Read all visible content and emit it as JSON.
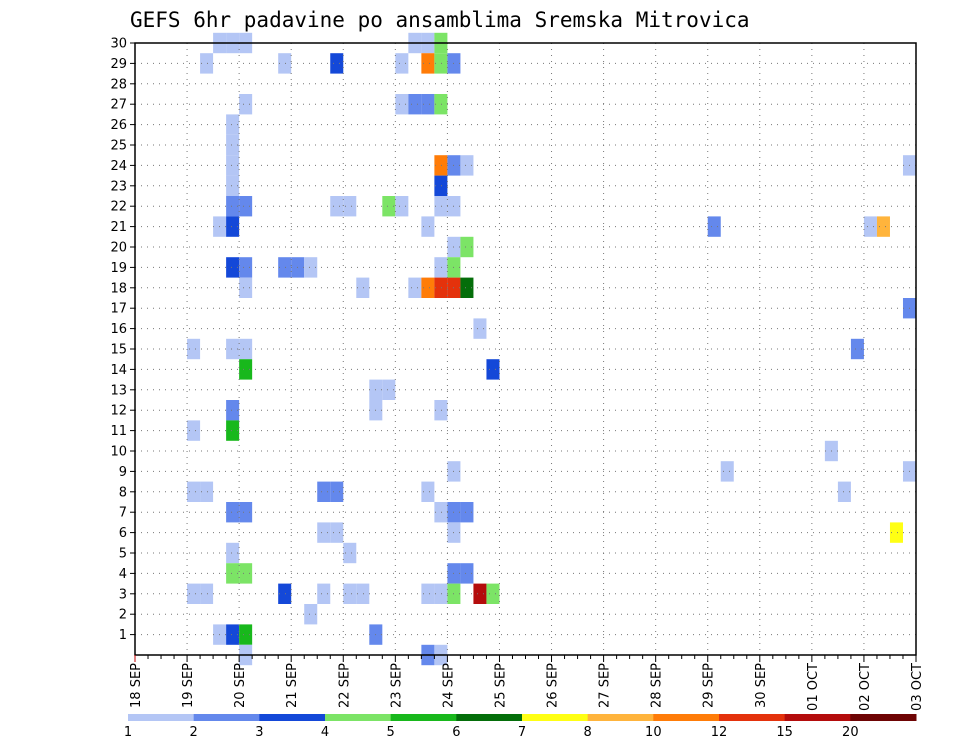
{
  "chart_data": {
    "type": "heatmap",
    "title": "GEFS 6hr padavine po ansamblima Sremska Mitrovica",
    "x_ticks": [
      "18 SEP",
      "19 SEP",
      "20 SEP",
      "21 SEP",
      "22 SEP",
      "23 SEP",
      "24 SEP",
      "25 SEP",
      "26 SEP",
      "27 SEP",
      "28 SEP",
      "29 SEP",
      "30 SEP",
      "01 OCT",
      "02 OCT",
      "03 OCT"
    ],
    "y_ticks": [
      1,
      2,
      3,
      4,
      5,
      6,
      7,
      8,
      9,
      10,
      11,
      12,
      13,
      14,
      15,
      16,
      17,
      18,
      19,
      20,
      21,
      22,
      23,
      24,
      25,
      26,
      27,
      28,
      29,
      30
    ],
    "y_range": [
      0,
      30
    ],
    "x_start": "18 SEP 00Z",
    "x_step_hours": 6,
    "grid": true,
    "legend": {
      "labels": [
        "1",
        "2",
        "3",
        "4",
        "5",
        "6",
        "7",
        "8",
        "10",
        "12",
        "15",
        "20"
      ],
      "colors": [
        "#b4c6f5",
        "#6488ec",
        "#1448d8",
        "#7ce466",
        "#18b81c",
        "#046e0a",
        "#ffff14",
        "#ffb43c",
        "#ff7c08",
        "#e4320c",
        "#b40c0c",
        "#6e0404"
      ]
    },
    "cells_note": "each cell: [member, time_index, color_bin]; time_index counts 6-hourly steps from 18 SEP 00Z",
    "cells": [
      [
        30,
        6,
        1
      ],
      [
        30,
        7,
        1
      ],
      [
        30,
        8,
        1
      ],
      [
        30,
        21,
        1
      ],
      [
        30,
        22,
        1
      ],
      [
        30,
        23,
        4
      ],
      [
        29,
        5,
        1
      ],
      [
        29,
        11,
        1
      ],
      [
        29,
        15,
        3
      ],
      [
        29,
        20,
        1
      ],
      [
        29,
        22,
        9
      ],
      [
        29,
        23,
        4
      ],
      [
        29,
        24,
        2
      ],
      [
        27,
        8,
        1
      ],
      [
        27,
        20,
        1
      ],
      [
        27,
        21,
        2
      ],
      [
        27,
        22,
        2
      ],
      [
        27,
        23,
        4
      ],
      [
        26,
        7,
        1
      ],
      [
        25,
        7,
        1
      ],
      [
        24,
        7,
        1
      ],
      [
        24,
        23,
        9
      ],
      [
        24,
        24,
        2
      ],
      [
        24,
        25,
        1
      ],
      [
        24,
        59,
        1
      ],
      [
        23,
        7,
        1
      ],
      [
        23,
        23,
        3
      ],
      [
        22,
        7,
        2
      ],
      [
        22,
        8,
        2
      ],
      [
        22,
        15,
        1
      ],
      [
        22,
        16,
        1
      ],
      [
        22,
        19,
        4
      ],
      [
        22,
        20,
        1
      ],
      [
        22,
        23,
        1
      ],
      [
        22,
        24,
        1
      ],
      [
        21,
        6,
        1
      ],
      [
        21,
        7,
        3
      ],
      [
        21,
        22,
        1
      ],
      [
        21,
        44,
        2
      ],
      [
        21,
        56,
        1
      ],
      [
        21,
        57,
        8
      ],
      [
        20,
        24,
        1
      ],
      [
        20,
        25,
        4
      ],
      [
        19,
        7,
        3
      ],
      [
        19,
        8,
        2
      ],
      [
        19,
        11,
        2
      ],
      [
        19,
        12,
        2
      ],
      [
        19,
        13,
        1
      ],
      [
        19,
        23,
        1
      ],
      [
        19,
        24,
        4
      ],
      [
        18,
        8,
        1
      ],
      [
        18,
        17,
        1
      ],
      [
        18,
        21,
        1
      ],
      [
        18,
        22,
        9
      ],
      [
        18,
        23,
        10
      ],
      [
        18,
        24,
        10
      ],
      [
        18,
        25,
        6
      ],
      [
        17,
        59,
        2
      ],
      [
        16,
        26,
        1
      ],
      [
        15,
        4,
        1
      ],
      [
        15,
        7,
        1
      ],
      [
        15,
        8,
        1
      ],
      [
        15,
        55,
        2
      ],
      [
        14,
        27,
        3
      ],
      [
        14,
        8,
        5
      ],
      [
        13,
        18,
        1
      ],
      [
        13,
        19,
        1
      ],
      [
        12,
        7,
        2
      ],
      [
        12,
        18,
        1
      ],
      [
        12,
        23,
        1
      ],
      [
        11,
        4,
        1
      ],
      [
        11,
        7,
        5
      ],
      [
        10,
        53,
        1
      ],
      [
        9,
        24,
        1
      ],
      [
        9,
        45,
        1
      ],
      [
        9,
        59,
        1
      ],
      [
        8,
        4,
        1
      ],
      [
        8,
        5,
        1
      ],
      [
        8,
        14,
        2
      ],
      [
        8,
        15,
        2
      ],
      [
        8,
        22,
        1
      ],
      [
        8,
        54,
        1
      ],
      [
        7,
        7,
        2
      ],
      [
        7,
        8,
        2
      ],
      [
        7,
        23,
        1
      ],
      [
        7,
        24,
        2
      ],
      [
        7,
        25,
        2
      ],
      [
        6,
        14,
        1
      ],
      [
        6,
        15,
        1
      ],
      [
        6,
        24,
        1
      ],
      [
        6,
        58,
        7
      ],
      [
        5,
        7,
        1
      ],
      [
        5,
        16,
        1
      ],
      [
        4,
        7,
        4
      ],
      [
        4,
        8,
        4
      ],
      [
        4,
        24,
        2
      ],
      [
        4,
        25,
        2
      ],
      [
        3,
        4,
        1
      ],
      [
        3,
        5,
        1
      ],
      [
        3,
        11,
        3
      ],
      [
        3,
        14,
        1
      ],
      [
        3,
        16,
        1
      ],
      [
        3,
        17,
        1
      ],
      [
        3,
        22,
        1
      ],
      [
        3,
        23,
        1
      ],
      [
        3,
        24,
        4
      ],
      [
        3,
        26,
        11
      ],
      [
        3,
        27,
        4
      ],
      [
        2,
        13,
        1
      ],
      [
        1,
        6,
        1
      ],
      [
        1,
        7,
        3
      ],
      [
        1,
        8,
        5
      ],
      [
        1,
        18,
        2
      ],
      [
        0,
        8,
        1
      ],
      [
        0,
        22,
        2
      ],
      [
        0,
        23,
        1
      ]
    ]
  }
}
